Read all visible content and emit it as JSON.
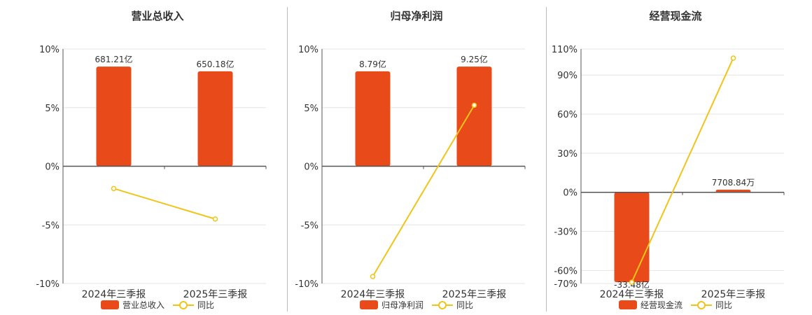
{
  "colors": {
    "bar": "#e84a1a",
    "line": "#f0c419",
    "grid": "#e4e4e4",
    "axis": "#555555"
  },
  "chart_data": [
    {
      "type": "bar",
      "title": "营业总收入",
      "categories": [
        "2024年三季报",
        "2025年三季报"
      ],
      "ylim": [
        -10,
        10
      ],
      "yticks": [
        10,
        5,
        0,
        -5,
        -10
      ],
      "ytick_labels": [
        "10%",
        "5%",
        "0%",
        "-5%",
        "-10%"
      ],
      "series": [
        {
          "name": "营业总收入",
          "type": "bar",
          "values": [
            8.5,
            8.1
          ],
          "labels": [
            "681.21亿",
            "650.18亿"
          ]
        },
        {
          "name": "同比",
          "type": "line",
          "values": [
            -1.9,
            -4.5
          ]
        }
      ],
      "grid": true,
      "legend": "bottom"
    },
    {
      "type": "bar",
      "title": "归母净利润",
      "categories": [
        "2024年三季报",
        "2025年三季报"
      ],
      "ylim": [
        -10,
        10
      ],
      "yticks": [
        10,
        5,
        0,
        -5,
        -10
      ],
      "ytick_labels": [
        "10%",
        "5%",
        "0%",
        "-5%",
        "-10%"
      ],
      "series": [
        {
          "name": "归母净利润",
          "type": "bar",
          "values": [
            8.1,
            8.5
          ],
          "labels": [
            "8.79亿",
            "9.25亿"
          ]
        },
        {
          "name": "同比",
          "type": "line",
          "values": [
            -9.4,
            5.2
          ]
        }
      ],
      "grid": true,
      "legend": "bottom"
    },
    {
      "type": "bar",
      "title": "经营现金流",
      "categories": [
        "2024年三季报",
        "2025年三季报"
      ],
      "ylim": [
        -70,
        110
      ],
      "yticks": [
        110,
        90,
        60,
        30,
        0,
        -30,
        -60,
        -70
      ],
      "ytick_labels": [
        "110%",
        "90%",
        "60%",
        "30%",
        "0%",
        "-30%",
        "-60%",
        "-70%"
      ],
      "series": [
        {
          "name": "经营现金流",
          "type": "bar",
          "values": [
            -69,
            2
          ],
          "labels": [
            "-33.48亿",
            "7708.84万"
          ]
        },
        {
          "name": "同比",
          "type": "line",
          "values": [
            -69,
            103
          ]
        }
      ],
      "grid": true,
      "legend": "bottom"
    }
  ]
}
